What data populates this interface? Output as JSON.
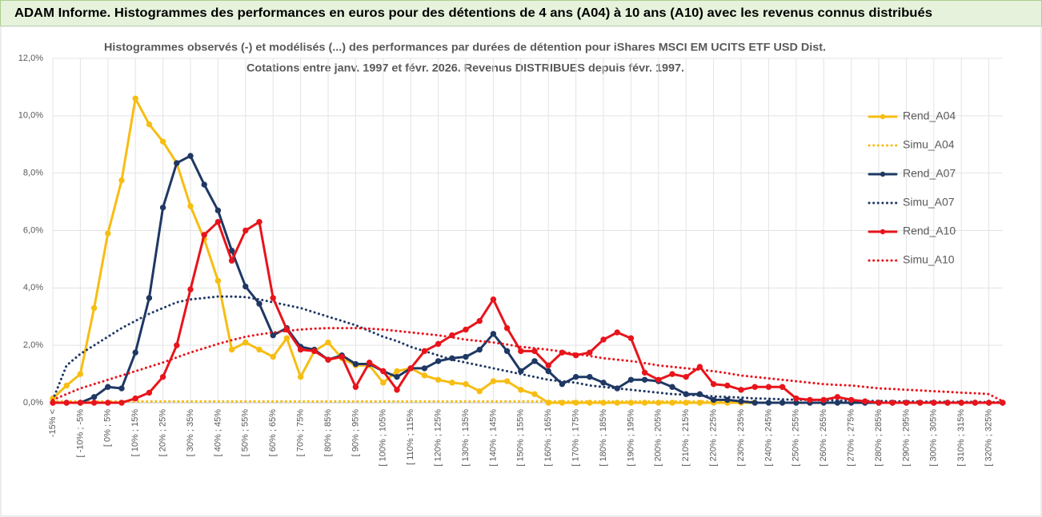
{
  "chart_data": {
    "type": "line",
    "header": "ADAM Informe. Histogrammes des performances en euros pour des détentions de 4 ans (A04) à 10 ans (A10) avec les revenus connus distribués",
    "title": "Histogrammes observés (-) et modélisés (...) des performances par durées de détention pour iShares MSCI EM UCITS ETF USD Dist.",
    "subtitle": "Cotations entre janv. 1997 et févr. 2026. Revenus DISTRIBUES depuis févr. 1997.",
    "categories": [
      "-15% <",
      null,
      "[ -10% ; -5%",
      null,
      "[ 0% ; 5%",
      null,
      "[ 10% ; 15%",
      null,
      "[ 20% ; 25%",
      null,
      "[ 30% ; 35%",
      null,
      "[ 40% ; 45%",
      null,
      "[ 50% ; 55%",
      null,
      "[ 60% ; 65%",
      null,
      "[ 70% ; 75%",
      null,
      "[ 80% ; 85%",
      null,
      "[ 90% ; 95%",
      null,
      "[ 100% ; 105%",
      null,
      "[ 110% ; 115%",
      null,
      "[ 120% ; 125%",
      null,
      "[ 130% ; 135%",
      null,
      "[ 140% ; 145%",
      null,
      "[ 150% ; 155%",
      null,
      "[ 160% ; 165%",
      null,
      "[ 170% ; 175%",
      null,
      "[ 180% ; 185%",
      null,
      "[ 190% ; 195%",
      null,
      "[ 200% ; 205%",
      null,
      "[ 210% ; 215%",
      null,
      "[ 220% ; 225%",
      null,
      "[ 230% ; 235%",
      null,
      "[ 240% ; 245%",
      null,
      "[ 250% ; 255%",
      null,
      "[ 260% ; 265%",
      null,
      "[ 270% ; 275%",
      null,
      "[ 280% ; 285%",
      null,
      "[ 290% ; 295%",
      null,
      "[ 300% ; 305%",
      null,
      "[ 310% ; 315%",
      null,
      "[ 320% ; 325%",
      null
    ],
    "series": [
      {
        "name": "Rend_A04",
        "color": "#f7bd12",
        "line_style": "solid",
        "markers": true,
        "values": [
          0.15,
          0.6,
          1.0,
          3.3,
          5.9,
          7.75,
          10.6,
          9.7,
          9.1,
          8.35,
          6.85,
          5.7,
          4.25,
          1.85,
          2.1,
          1.85,
          1.6,
          2.25,
          0.9,
          1.8,
          2.1,
          1.55,
          1.3,
          1.3,
          0.7,
          1.1,
          1.2,
          0.95,
          0.8,
          0.7,
          0.65,
          0.4,
          0.75,
          0.75,
          0.45,
          0.3,
          0,
          0,
          0,
          0,
          0,
          0,
          0,
          0,
          0,
          0,
          0,
          0,
          0,
          0,
          0,
          0,
          null,
          null,
          null,
          null,
          null,
          null,
          null,
          null,
          null,
          null,
          null,
          null,
          null,
          null,
          null,
          null,
          null,
          null
        ]
      },
      {
        "name": "Simu_A04",
        "color": "#f7bd12",
        "line_style": "dotted",
        "markers": false,
        "values": [
          0.05,
          0.05,
          0.05,
          0.05,
          0.05,
          0.05,
          0.05,
          0.05,
          0.05,
          0.05,
          0.05,
          0.05,
          0.05,
          0.05,
          0.05,
          0.05,
          0.05,
          0.05,
          0.05,
          0.05,
          0.05,
          0.05,
          0.05,
          0.05,
          0.05,
          0.05,
          0.05,
          0.05,
          0.05,
          0.05,
          0.05,
          0.05,
          0.05,
          0.05,
          0.05,
          0.05,
          0.05,
          0.05,
          0.05,
          0.05,
          0.05,
          0.05,
          0.05,
          0.05,
          0.05,
          0.05,
          0.05,
          0.05,
          0.05,
          0.05,
          0.05,
          0.05,
          null,
          null,
          null,
          null,
          null,
          null,
          null,
          null,
          null,
          null,
          null,
          null,
          null,
          null,
          null,
          null,
          null,
          null
        ]
      },
      {
        "name": "Rend_A07",
        "color": "#1f3864",
        "line_style": "solid",
        "markers": true,
        "values": [
          0,
          0,
          0,
          0.2,
          0.55,
          0.5,
          1.75,
          3.65,
          6.8,
          8.35,
          8.6,
          7.6,
          6.7,
          5.3,
          4.05,
          3.45,
          2.35,
          2.6,
          1.95,
          1.85,
          1.5,
          1.65,
          1.35,
          1.35,
          1.1,
          0.9,
          1.2,
          1.2,
          1.45,
          1.55,
          1.6,
          1.85,
          2.4,
          1.8,
          1.1,
          1.45,
          1.1,
          0.65,
          0.9,
          0.9,
          0.7,
          0.5,
          0.8,
          0.8,
          0.75,
          0.55,
          0.3,
          0.3,
          0.1,
          0.1,
          0.05,
          0,
          0,
          0,
          0,
          0,
          0,
          0,
          0,
          0,
          0,
          0,
          0,
          0,
          0,
          0,
          0,
          0,
          0,
          0
        ]
      },
      {
        "name": "Simu_A07",
        "color": "#1f3864",
        "line_style": "dotted",
        "markers": false,
        "values": [
          0.1,
          1.3,
          1.7,
          2.0,
          2.3,
          2.6,
          2.85,
          3.1,
          3.3,
          3.5,
          3.6,
          3.65,
          3.7,
          3.7,
          3.68,
          3.6,
          3.5,
          3.4,
          3.3,
          3.15,
          3.0,
          2.85,
          2.7,
          2.5,
          2.3,
          2.15,
          1.95,
          1.8,
          1.65,
          1.5,
          1.4,
          1.3,
          1.2,
          1.1,
          1.0,
          0.9,
          0.8,
          0.75,
          0.7,
          0.6,
          0.55,
          0.5,
          0.45,
          0.4,
          0.35,
          0.3,
          0.28,
          0.25,
          0.22,
          0.2,
          0.18,
          0.15,
          0.14,
          0.12,
          0.1,
          0.1,
          0.09,
          0.08,
          0.07,
          0.06,
          0.06,
          0.05,
          0.05,
          0.04,
          0.04,
          0.03,
          0.03,
          0.03,
          0.02,
          0.02
        ]
      },
      {
        "name": "Rend_A10",
        "color": "#e8141b",
        "line_style": "solid",
        "markers": true,
        "values": [
          0,
          0,
          0,
          0,
          0,
          0,
          0.15,
          0.35,
          0.9,
          2.0,
          3.95,
          5.85,
          6.3,
          4.95,
          6.0,
          6.3,
          3.65,
          2.55,
          1.85,
          1.8,
          1.5,
          1.6,
          0.55,
          1.4,
          1.1,
          0.45,
          1.2,
          1.8,
          2.05,
          2.35,
          2.55,
          2.85,
          3.6,
          2.6,
          1.8,
          1.8,
          1.3,
          1.75,
          1.65,
          1.75,
          2.2,
          2.45,
          2.25,
          1.05,
          0.8,
          1.0,
          0.9,
          1.25,
          0.65,
          0.6,
          0.45,
          0.55,
          0.55,
          0.55,
          0.15,
          0.1,
          0.1,
          0.2,
          0.1,
          0.05,
          0,
          0,
          0,
          0,
          0,
          0,
          0,
          0,
          0,
          0
        ]
      },
      {
        "name": "Simu_A10",
        "color": "#e8141b",
        "line_style": "dotted",
        "markers": false,
        "values": [
          0.1,
          0.3,
          0.5,
          0.65,
          0.8,
          0.95,
          1.1,
          1.25,
          1.4,
          1.58,
          1.75,
          1.9,
          2.05,
          2.18,
          2.3,
          2.38,
          2.45,
          2.5,
          2.55,
          2.58,
          2.6,
          2.6,
          2.6,
          2.58,
          2.55,
          2.5,
          2.45,
          2.4,
          2.35,
          2.28,
          2.2,
          2.15,
          2.1,
          2.03,
          1.95,
          1.9,
          1.85,
          1.78,
          1.7,
          1.63,
          1.55,
          1.5,
          1.45,
          1.38,
          1.3,
          1.25,
          1.2,
          1.15,
          1.1,
          1.03,
          0.95,
          0.9,
          0.85,
          0.8,
          0.75,
          0.7,
          0.65,
          0.62,
          0.6,
          0.55,
          0.5,
          0.48,
          0.45,
          0.43,
          0.4,
          0.38,
          0.35,
          0.33,
          0.3,
          0.05
        ]
      }
    ],
    "ylim": [
      0,
      12
    ],
    "yticks": [
      {
        "value": 0,
        "label": "0,0%"
      },
      {
        "value": 2,
        "label": "2,0%"
      },
      {
        "value": 4,
        "label": "4,0%"
      },
      {
        "value": 6,
        "label": "6,0%"
      },
      {
        "value": 8,
        "label": "8,0%"
      },
      {
        "value": 10,
        "label": "10,0%"
      },
      {
        "value": 12,
        "label": "12,0%"
      }
    ],
    "grid": true,
    "legend": "right"
  }
}
